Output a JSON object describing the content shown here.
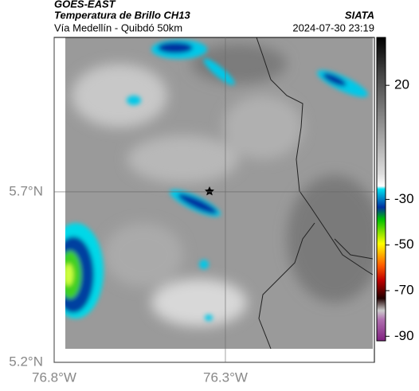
{
  "header": {
    "source": "GOES-EAST",
    "title": "Temperatura de Brillo CH13",
    "brand": "SIATA",
    "subtitle": "Vía Medellín - Quibdó 50km",
    "timestamp": "2024-07-30 23:19"
  },
  "map": {
    "lon_lim": [
      -76.8,
      -75.865
    ],
    "lat_lim": [
      5.2,
      6.153
    ],
    "lon_ticks": [
      {
        "value": -76.8,
        "label": "76.8°W"
      },
      {
        "value": -76.3,
        "label": "76.3°W"
      }
    ],
    "lat_ticks": [
      {
        "value": 5.7,
        "label": "5.7°N"
      },
      {
        "value": 5.2,
        "label": "5.2°N"
      }
    ],
    "colorbar": {
      "lim": [
        -92,
        41
      ],
      "ticks": [
        20,
        -30,
        -50,
        -70,
        -90
      ]
    }
  }
}
